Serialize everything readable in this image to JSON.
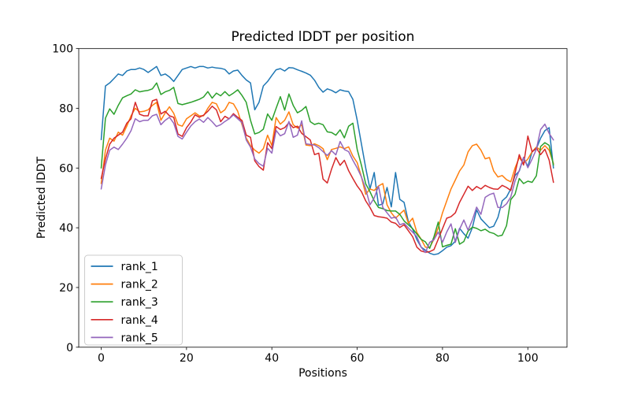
{
  "chart_data": {
    "type": "line",
    "title": "Predicted lDDT per position",
    "xlabel": "Positions",
    "ylabel": "Predicted lDDT",
    "x_ticks": [
      0,
      20,
      40,
      60,
      80,
      100
    ],
    "y_ticks": [
      0,
      20,
      40,
      60,
      80,
      100
    ],
    "xlim": [
      -5.3,
      109.2
    ],
    "ylim": [
      0,
      100
    ],
    "x_range": [
      0,
      106
    ],
    "x_is_index": true,
    "grid": false,
    "legend_position": "lower left",
    "background_color": "#ffffff",
    "spine_color": "#000000",
    "legend_edge_color": "#cccccc",
    "series": [
      {
        "name": "rank_1",
        "color": "#1f77b4",
        "values": [
          69.5,
          87.5,
          88.5,
          90,
          91.5,
          91,
          92.5,
          93,
          93,
          93.5,
          93,
          92,
          93,
          94,
          91,
          91.5,
          90.5,
          89,
          91,
          93,
          93.5,
          94,
          93.5,
          94,
          94,
          93.5,
          93.8,
          93.5,
          93.4,
          93,
          91.5,
          92.5,
          92.8,
          91,
          89.5,
          88.5,
          79.5,
          82,
          87.5,
          89,
          91,
          92.9,
          93.3,
          92.5,
          93.6,
          93.5,
          92.9,
          92.4,
          91.8,
          91.1,
          89.4,
          87,
          85.4,
          86.5,
          86,
          85.2,
          86.2,
          85.8,
          85.6,
          83,
          76,
          68,
          60,
          53,
          58.5,
          47.5,
          48,
          53.5,
          47,
          58.5,
          49.5,
          48.5,
          42,
          39.5,
          36,
          33.5,
          32.5,
          31.5,
          31,
          31.3,
          32.3,
          33.5,
          34,
          35.5,
          39.8,
          38,
          36.5,
          40,
          46,
          43,
          41.5,
          40,
          40.5,
          43.5,
          49,
          50.3,
          53,
          57.5,
          59,
          63.5,
          60.5,
          65.5,
          66.5,
          70,
          72.5,
          73.5,
          60
        ]
      },
      {
        "name": "rank_2",
        "color": "#ff7f0e",
        "values": [
          54.8,
          66,
          70,
          69,
          72,
          71,
          74,
          77.5,
          80,
          78.8,
          79,
          79.5,
          81,
          82,
          76,
          78.5,
          80.5,
          78.3,
          74.5,
          74,
          76.5,
          77.5,
          78.5,
          77.5,
          77.5,
          80,
          82,
          81.5,
          78.5,
          79.5,
          82,
          81.5,
          79,
          74.5,
          70,
          67.5,
          66,
          65,
          66.5,
          71,
          67.5,
          76.9,
          74.7,
          76,
          78.8,
          74.5,
          73.4,
          74.5,
          67.7,
          67.5,
          68.1,
          67.5,
          66.5,
          62.8,
          66.2,
          66.6,
          67.1,
          66.5,
          67.1,
          64,
          61.8,
          57,
          51.2,
          53,
          52.5,
          54,
          54.8,
          47.7,
          45,
          43.2,
          44.6,
          45.9,
          41.5,
          43.2,
          38.4,
          36.2,
          33.5,
          33.4,
          36.2,
          40,
          45,
          49,
          53,
          56,
          59,
          61,
          65.4,
          67.5,
          68,
          66,
          63.1,
          63.5,
          59,
          57,
          57.5,
          56.1,
          55.4,
          60,
          63.5,
          61.5,
          63,
          65.5,
          67,
          66,
          67.5,
          66,
          61.5
        ]
      },
      {
        "name": "rank_3",
        "color": "#2ca02c",
        "values": [
          60,
          76.7,
          79.8,
          78,
          81,
          83.5,
          84.2,
          84.8,
          86.2,
          85.5,
          85.8,
          86,
          86.5,
          88.5,
          84.6,
          85.5,
          86,
          87,
          81.6,
          81.2,
          81.6,
          82,
          82.5,
          83,
          83.8,
          85.6,
          83.4,
          85.1,
          84.2,
          85.6,
          84.2,
          85.1,
          86.2,
          84.3,
          82,
          76,
          71.4,
          71.9,
          73,
          78.1,
          76,
          80,
          83.9,
          79.4,
          84.8,
          81,
          78.5,
          79.3,
          80.6,
          75.5,
          74.6,
          75,
          74.5,
          72.1,
          71.9,
          71,
          72.8,
          70.1,
          74,
          75,
          66.2,
          60.9,
          54.7,
          52.1,
          49,
          46.8,
          46.4,
          45.8,
          45.6,
          45.6,
          44.5,
          42.3,
          41,
          39.7,
          37.9,
          36.1,
          35.3,
          33.1,
          37,
          41.9,
          33.6,
          34.1,
          34.5,
          39.7,
          34.5,
          35.4,
          38.9,
          40.2,
          39.8,
          39,
          39.5,
          38.5,
          38.1,
          37.2,
          37.5,
          40.7,
          49.4,
          51.2,
          56.5,
          54.8,
          55.6,
          55.2,
          57.4,
          67.2,
          68.5,
          67.6,
          61
        ]
      },
      {
        "name": "rank_4",
        "color": "#d62728",
        "values": [
          56.5,
          63,
          68,
          70,
          71,
          72,
          75,
          76.5,
          82,
          78,
          77.5,
          77.5,
          82.5,
          83,
          78.1,
          79,
          77.5,
          77,
          71.4,
          70.6,
          73.5,
          75.4,
          77.8,
          77,
          77.7,
          79,
          80.7,
          79.5,
          75.5,
          77.3,
          76.5,
          78.2,
          77,
          75.9,
          71,
          70.3,
          62.4,
          60.5,
          59.3,
          68.5,
          66.5,
          73.9,
          72.9,
          73.5,
          75.2,
          73.5,
          74,
          71.6,
          70.5,
          69.4,
          64.5,
          65,
          56.3,
          55,
          59.6,
          63.5,
          60.9,
          62.6,
          59.1,
          56.5,
          54,
          52.1,
          49,
          46.8,
          44.1,
          43.7,
          43.5,
          43.2,
          41.9,
          41.5,
          40.1,
          41,
          39,
          37,
          33.5,
          32.2,
          31.8,
          32,
          32.7,
          36.2,
          39.7,
          43.2,
          43.7,
          45,
          48.5,
          51.2,
          53.9,
          52.5,
          53.8,
          53,
          54.2,
          53.5,
          53,
          52.9,
          54.2,
          53.5,
          52.5,
          58.3,
          64.5,
          61,
          70.7,
          65.4,
          66.7,
          64.5,
          66.3,
          62.7,
          55.2
        ]
      },
      {
        "name": "rank_5",
        "color": "#9467bd",
        "values": [
          53,
          61,
          66,
          67,
          66.2,
          68,
          70,
          72.5,
          76.5,
          75.5,
          76,
          76,
          77.5,
          78,
          74.5,
          76,
          77,
          75,
          70.6,
          69.7,
          72,
          74.1,
          75.5,
          76.4,
          75.3,
          76.9,
          75.5,
          73.9,
          74.5,
          75.6,
          76.5,
          77.8,
          76.5,
          75.2,
          69.4,
          67,
          63,
          61.5,
          60.6,
          66.6,
          65,
          72.6,
          70.8,
          71.5,
          75.6,
          70.3,
          71,
          75.8,
          68.1,
          67.9,
          67.7,
          66.8,
          65.5,
          64.2,
          65.8,
          64.4,
          68.9,
          66.2,
          65.5,
          62.6,
          60,
          57,
          53,
          47.7,
          50,
          53.9,
          46.8,
          45,
          43.2,
          43.6,
          41,
          41.5,
          39.9,
          38.5,
          37,
          33.5,
          31.7,
          35.1,
          36,
          38.6,
          35.1,
          38.6,
          41.3,
          35.1,
          39.5,
          42.6,
          39.2,
          42.6,
          46.9,
          44.5,
          50.2,
          51.1,
          51.6,
          46.8,
          46.8,
          48,
          50.3,
          55.6,
          59.2,
          63.6,
          60.1,
          63,
          66.3,
          72.9,
          74.7,
          71.6,
          69.4
        ]
      }
    ]
  }
}
